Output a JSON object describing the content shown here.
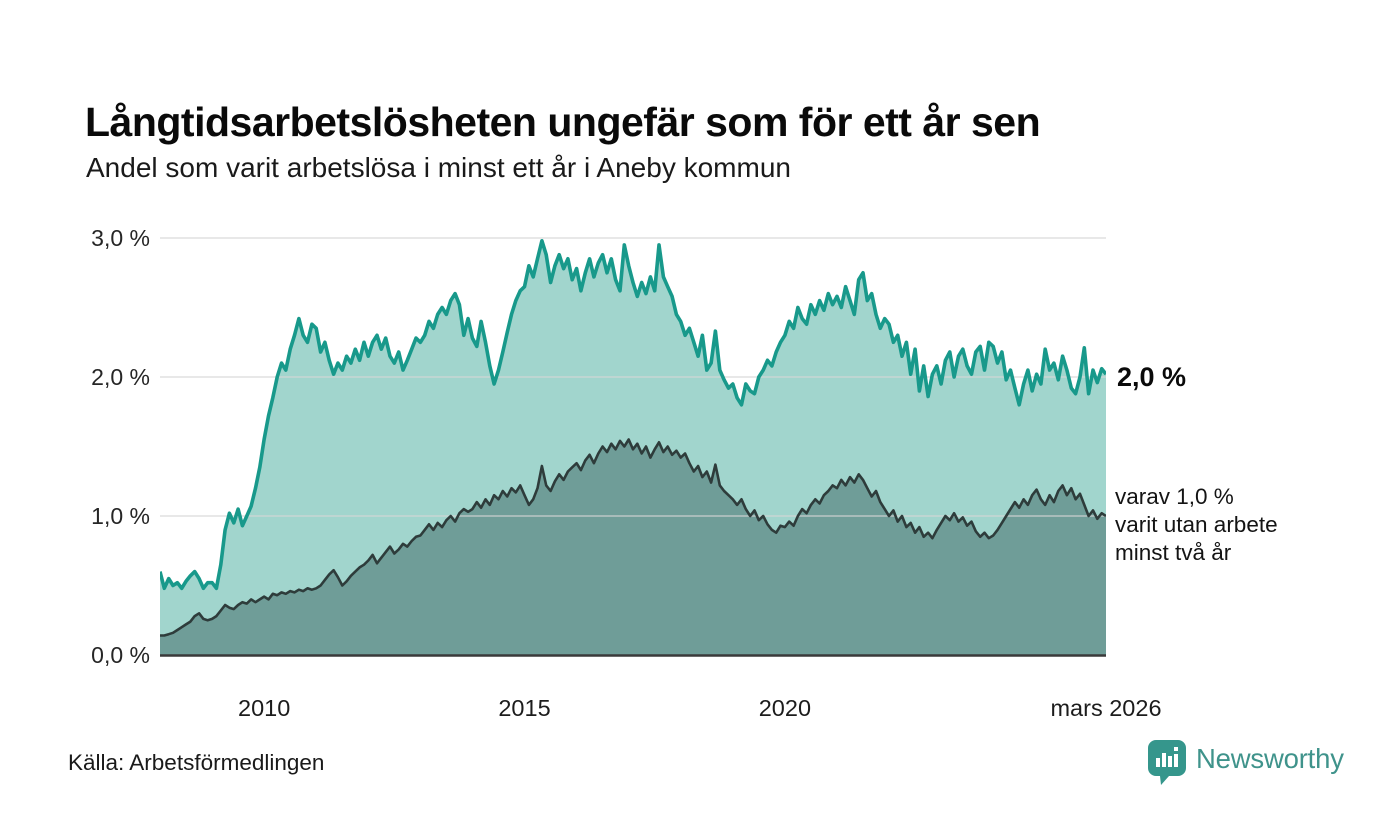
{
  "header": {
    "title": "Långtidsarbetslösheten ungefär som för ett år sen",
    "subtitle": "Andel som varit arbetslösa i minst ett år i Aneby kommun"
  },
  "annotations": {
    "end_value_label": "2,0 %",
    "secondary_lines": [
      "varav 1,0 %",
      "varit utan arbete",
      "minst två år"
    ]
  },
  "footer": {
    "source": "Källa: Arbetsförmedlingen",
    "brand": "Newsworthy",
    "logo_icon": "speech-bubble-bar-chart-icon"
  },
  "colors": {
    "background": "#ffffff",
    "series1_line": "#18998b",
    "series1_fill": "#a1d5cd",
    "series2_line": "#2e3c3b",
    "series2_fill": "#6f9d98",
    "gridline": "#d7d7d7",
    "axis_line": "#3a3a3a",
    "brand_teal": "#35968c"
  },
  "chart_data": {
    "type": "area",
    "title": "Långtidsarbetslösheten ungefär som för ett år sen",
    "subtitle": "Andel som varit arbetslösa i minst ett år i Aneby kommun",
    "x_start": "2008-01",
    "x_end": "2026-03",
    "points_per_year": 12,
    "ylim": [
      0,
      3.0
    ],
    "grid_values": [
      1.0,
      2.0,
      3.0
    ],
    "y_tick_labels": [
      "0,0 %",
      "1,0 %",
      "2,0 %",
      "3,0 %"
    ],
    "x_tick_labels": [
      "2010",
      "2015",
      "2020",
      "mars 2026"
    ],
    "x_tick_positions_months": [
      24,
      84,
      144,
      218
    ],
    "legend_position": "right-annotations",
    "grid": true,
    "series": [
      {
        "name": "Andel arbetslösa minst ett år",
        "end_value_pct": 2.0,
        "line_color": "#18998b",
        "fill_color": "#a1d5cd",
        "values": [
          0.6,
          0.48,
          0.55,
          0.5,
          0.52,
          0.48,
          0.53,
          0.57,
          0.6,
          0.55,
          0.48,
          0.52,
          0.52,
          0.48,
          0.65,
          0.9,
          1.02,
          0.95,
          1.05,
          0.93,
          1.0,
          1.07,
          1.2,
          1.35,
          1.55,
          1.72,
          1.85,
          2.0,
          2.1,
          2.05,
          2.2,
          2.3,
          2.42,
          2.3,
          2.25,
          2.38,
          2.35,
          2.18,
          2.25,
          2.12,
          2.02,
          2.1,
          2.05,
          2.15,
          2.1,
          2.2,
          2.12,
          2.25,
          2.15,
          2.25,
          2.3,
          2.2,
          2.28,
          2.15,
          2.1,
          2.18,
          2.05,
          2.12,
          2.2,
          2.28,
          2.25,
          2.3,
          2.4,
          2.35,
          2.45,
          2.5,
          2.45,
          2.55,
          2.6,
          2.52,
          2.3,
          2.42,
          2.28,
          2.22,
          2.4,
          2.25,
          2.08,
          1.95,
          2.05,
          2.18,
          2.32,
          2.45,
          2.55,
          2.62,
          2.65,
          2.8,
          2.72,
          2.85,
          2.98,
          2.88,
          2.68,
          2.8,
          2.88,
          2.78,
          2.85,
          2.7,
          2.78,
          2.62,
          2.75,
          2.85,
          2.72,
          2.82,
          2.88,
          2.75,
          2.85,
          2.7,
          2.62,
          2.95,
          2.8,
          2.68,
          2.58,
          2.68,
          2.6,
          2.72,
          2.62,
          2.95,
          2.72,
          2.65,
          2.58,
          2.45,
          2.4,
          2.3,
          2.35,
          2.25,
          2.15,
          2.3,
          2.05,
          2.1,
          2.33,
          2.05,
          1.98,
          1.92,
          1.95,
          1.85,
          1.8,
          1.95,
          1.9,
          1.88,
          2.0,
          2.05,
          2.12,
          2.08,
          2.18,
          2.25,
          2.3,
          2.4,
          2.35,
          2.5,
          2.42,
          2.38,
          2.52,
          2.45,
          2.55,
          2.48,
          2.6,
          2.52,
          2.58,
          2.5,
          2.65,
          2.55,
          2.45,
          2.7,
          2.75,
          2.55,
          2.6,
          2.45,
          2.35,
          2.42,
          2.38,
          2.25,
          2.3,
          2.15,
          2.25,
          2.02,
          2.2,
          1.9,
          2.08,
          1.86,
          2.02,
          2.08,
          1.95,
          2.12,
          2.18,
          2.0,
          2.15,
          2.2,
          2.08,
          2.02,
          2.18,
          2.22,
          2.05,
          2.25,
          2.22,
          2.1,
          2.18,
          1.98,
          2.05,
          1.92,
          1.8,
          1.95,
          2.05,
          1.9,
          2.02,
          1.95,
          2.2,
          2.05,
          2.1,
          1.98,
          2.15,
          2.05,
          1.92,
          1.88,
          2.0,
          2.21,
          1.88,
          2.05,
          1.96,
          2.06,
          2.02
        ]
      },
      {
        "name": "Andel arbetslösa minst två år",
        "end_value_pct": 1.0,
        "line_color": "#2e3c3b",
        "fill_color": "#6f9d98",
        "values": [
          0.14,
          0.14,
          0.15,
          0.16,
          0.18,
          0.2,
          0.22,
          0.24,
          0.28,
          0.3,
          0.26,
          0.25,
          0.26,
          0.28,
          0.32,
          0.36,
          0.34,
          0.33,
          0.36,
          0.38,
          0.37,
          0.4,
          0.38,
          0.4,
          0.42,
          0.4,
          0.44,
          0.43,
          0.45,
          0.44,
          0.46,
          0.45,
          0.47,
          0.46,
          0.48,
          0.47,
          0.48,
          0.5,
          0.54,
          0.58,
          0.61,
          0.56,
          0.5,
          0.53,
          0.57,
          0.6,
          0.63,
          0.65,
          0.68,
          0.72,
          0.66,
          0.7,
          0.74,
          0.78,
          0.73,
          0.76,
          0.8,
          0.78,
          0.82,
          0.85,
          0.86,
          0.9,
          0.94,
          0.9,
          0.95,
          0.92,
          0.97,
          1.0,
          0.96,
          1.02,
          1.05,
          1.03,
          1.05,
          1.1,
          1.06,
          1.12,
          1.08,
          1.15,
          1.12,
          1.18,
          1.14,
          1.2,
          1.17,
          1.22,
          1.15,
          1.08,
          1.12,
          1.2,
          1.36,
          1.22,
          1.18,
          1.25,
          1.3,
          1.26,
          1.32,
          1.35,
          1.38,
          1.33,
          1.4,
          1.44,
          1.38,
          1.45,
          1.5,
          1.46,
          1.52,
          1.48,
          1.54,
          1.5,
          1.55,
          1.48,
          1.52,
          1.45,
          1.5,
          1.42,
          1.48,
          1.53,
          1.46,
          1.5,
          1.44,
          1.47,
          1.42,
          1.45,
          1.38,
          1.32,
          1.36,
          1.28,
          1.32,
          1.24,
          1.37,
          1.22,
          1.18,
          1.15,
          1.12,
          1.08,
          1.12,
          1.05,
          1.0,
          1.04,
          0.97,
          1.0,
          0.94,
          0.9,
          0.88,
          0.93,
          0.92,
          0.96,
          0.93,
          1.0,
          1.05,
          1.02,
          1.08,
          1.12,
          1.09,
          1.15,
          1.18,
          1.22,
          1.2,
          1.26,
          1.22,
          1.28,
          1.24,
          1.3,
          1.26,
          1.2,
          1.14,
          1.18,
          1.1,
          1.05,
          1.0,
          1.04,
          0.96,
          1.0,
          0.92,
          0.95,
          0.88,
          0.92,
          0.85,
          0.88,
          0.84,
          0.9,
          0.95,
          1.0,
          0.97,
          1.02,
          0.96,
          0.99,
          0.93,
          0.96,
          0.89,
          0.85,
          0.88,
          0.84,
          0.86,
          0.9,
          0.95,
          1.0,
          1.05,
          1.1,
          1.06,
          1.12,
          1.08,
          1.15,
          1.19,
          1.12,
          1.08,
          1.15,
          1.1,
          1.18,
          1.22,
          1.15,
          1.2,
          1.12,
          1.16,
          1.08,
          1.0,
          1.04,
          0.98,
          1.02,
          1.0
        ]
      }
    ]
  }
}
